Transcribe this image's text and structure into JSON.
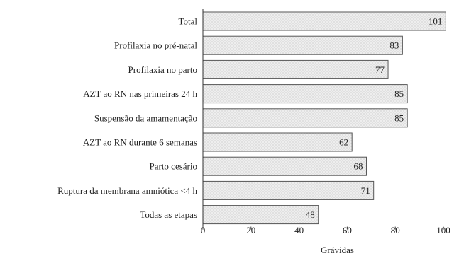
{
  "chart_data": {
    "type": "bar",
    "orientation": "horizontal",
    "categories": [
      "Total",
      "Profilaxia no pré-natal",
      "Profilaxia no parto",
      "AZT ao RN nas primeiras 24 h",
      "Suspensão da amamentação",
      "AZT ao RN durante 6 semanas",
      "Parto cesário",
      "Ruptura da membrana amniótica <4 h",
      "Todas as etapas"
    ],
    "values": [
      101,
      83,
      77,
      85,
      85,
      62,
      68,
      71,
      48
    ],
    "value_labels": [
      "101",
      "83",
      "77",
      "85",
      "85",
      "62",
      "68",
      "71",
      "48"
    ],
    "title": "",
    "xlabel": "Grávidas",
    "ylabel": "",
    "xlim": [
      0,
      100
    ],
    "xticks": [
      0,
      20,
      40,
      60,
      80,
      100
    ],
    "xtick_labels": [
      "0",
      "20",
      "40",
      "60",
      "80",
      "100"
    ],
    "grid": false,
    "legend": "none",
    "bar_fill": "#eeeeee",
    "bar_pattern_color": "#bdbdbd",
    "bar_border": "#555555",
    "axis_color": "#333333"
  }
}
